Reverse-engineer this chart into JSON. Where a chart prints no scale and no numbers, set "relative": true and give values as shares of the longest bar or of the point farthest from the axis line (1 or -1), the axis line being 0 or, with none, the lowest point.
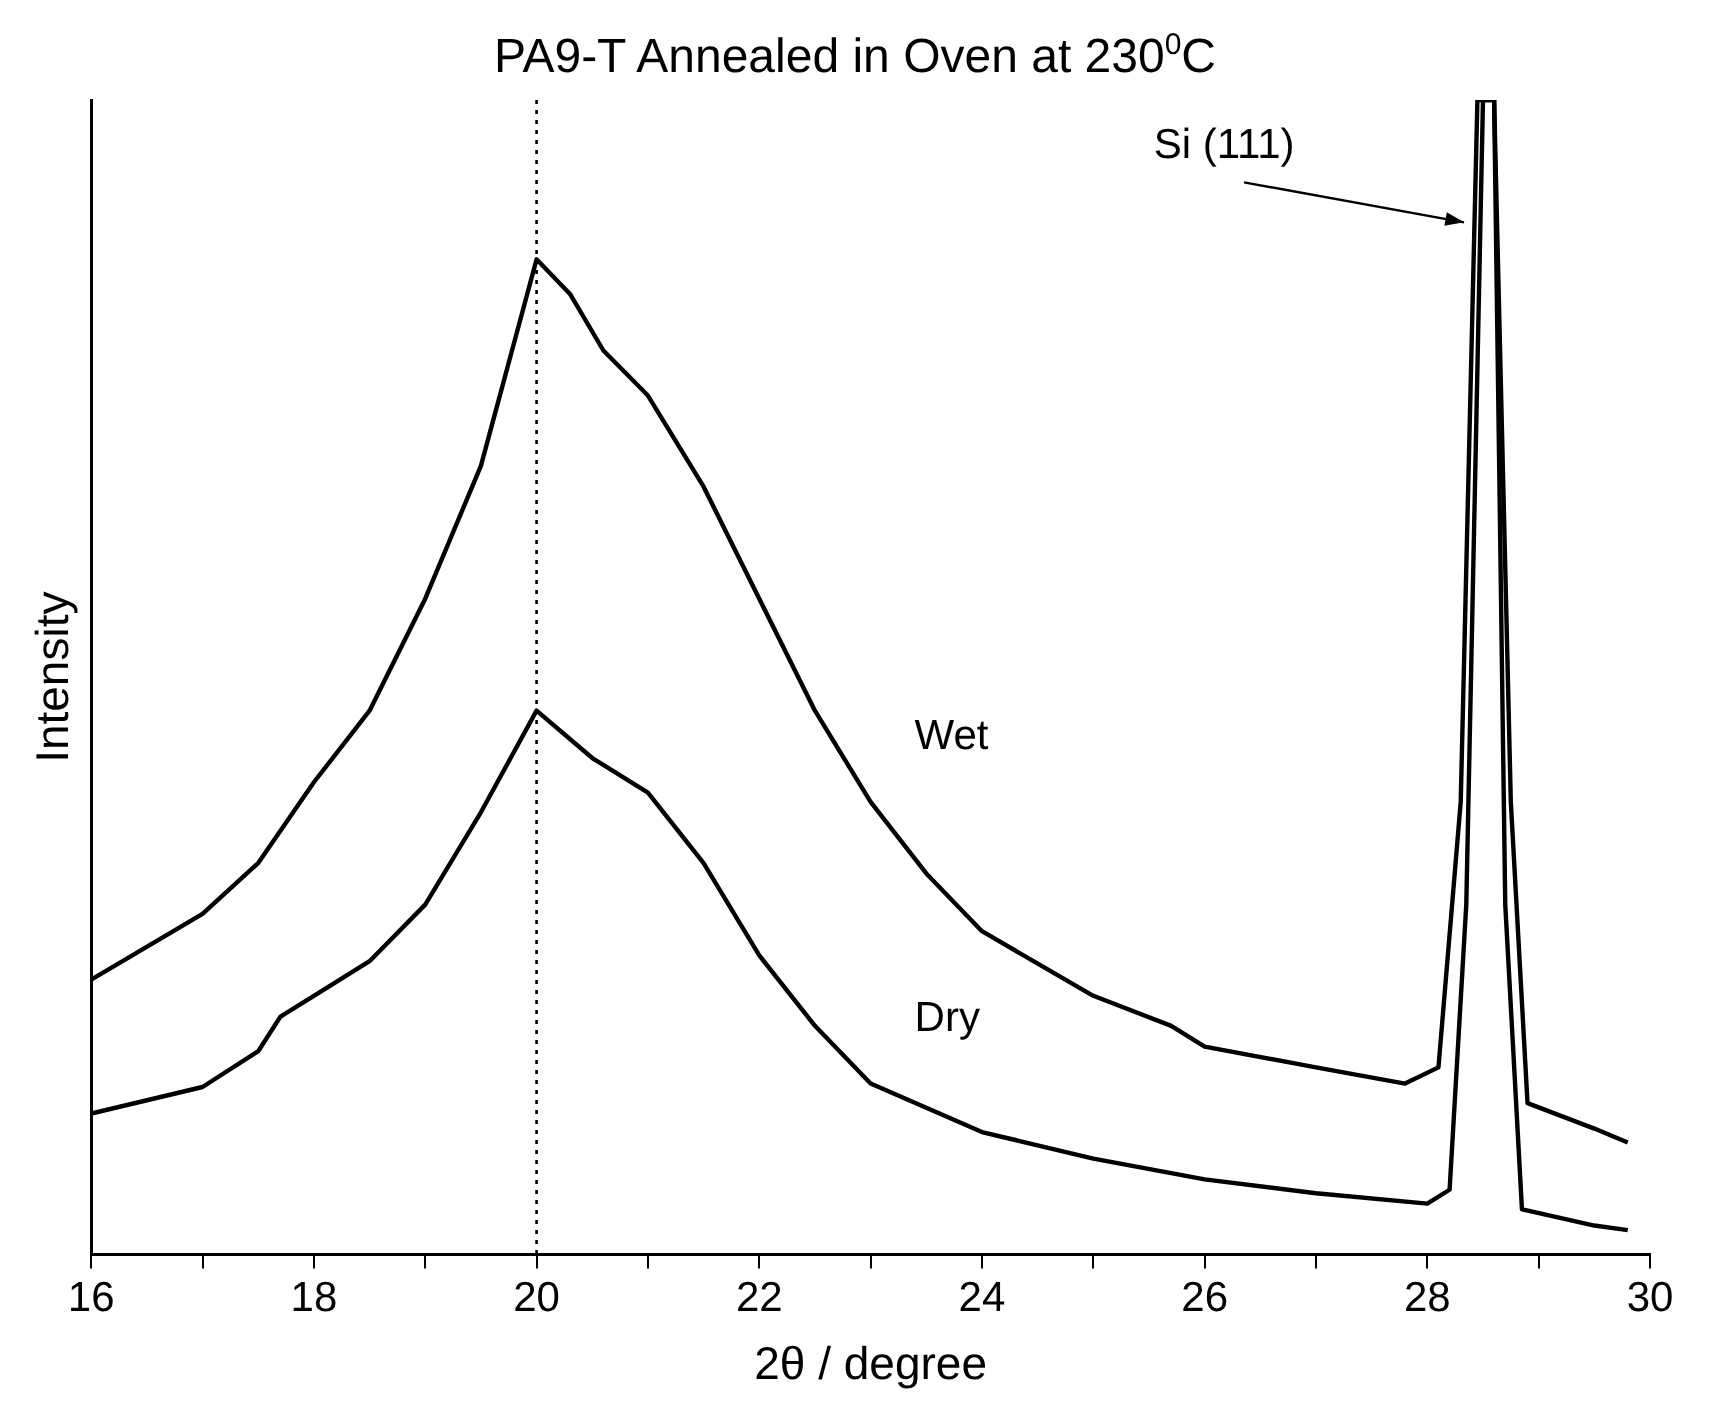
{
  "chart_data": {
    "type": "line",
    "title": "PA9-T Annealed in Oven at 230$^{0}$C",
    "xlabel": "2θ / degree",
    "ylabel": "Intensity",
    "relative": true,
    "xlim": [
      16,
      30
    ],
    "xticks": [
      16,
      {
        "value": 17,
        "label": null
      },
      18,
      {
        "value": 19,
        "label": null
      },
      20,
      {
        "value": 21,
        "label": null
      },
      22,
      {
        "value": 23,
        "label": null
      },
      24,
      {
        "value": 25,
        "label": null
      },
      26,
      {
        "value": 27,
        "label": null
      },
      28,
      {
        "value": 29,
        "label": null
      },
      30
    ],
    "series": [
      {
        "name": "Wet",
        "color": "#000000",
        "x": [
          16,
          17,
          17.5,
          18,
          18.5,
          19,
          19.5,
          20,
          20.3,
          20.6,
          21,
          21.5,
          22,
          22.5,
          23,
          23.5,
          24,
          25,
          25.7,
          26,
          27,
          27.8,
          28.1,
          28.3,
          28.45,
          28.6,
          28.75,
          28.9,
          29.5,
          29.8
        ],
        "values": [
          0.238,
          0.295,
          0.339,
          0.409,
          0.471,
          0.568,
          0.683,
          0.862,
          0.832,
          0.783,
          0.744,
          0.665,
          0.568,
          0.471,
          0.392,
          0.33,
          0.28,
          0.224,
          0.198,
          0.18,
          0.162,
          0.148,
          0.162,
          0.392,
          1,
          1,
          0.392,
          0.131,
          0.109,
          0.097
        ]
      },
      {
        "name": "Dry",
        "color": "#000000",
        "x": [
          16,
          17,
          17.5,
          17.7,
          18,
          18.5,
          19,
          19.5,
          20,
          20.5,
          21,
          21.5,
          22,
          22.5,
          23,
          24,
          25,
          26,
          27,
          28,
          28.2,
          28.35,
          28.5,
          28.6,
          28.7,
          28.85,
          29.5,
          29.8
        ],
        "values": [
          0.122,
          0.145,
          0.176,
          0.206,
          0.224,
          0.254,
          0.303,
          0.383,
          0.471,
          0.43,
          0.4,
          0.339,
          0.259,
          0.198,
          0.148,
          0.106,
          0.083,
          0.065,
          0.053,
          0.044,
          0.056,
          0.303,
          1,
          1,
          0.303,
          0.039,
          0.025,
          0.021
        ]
      }
    ],
    "ref_lines": [
      {
        "axis": "x",
        "value": 20,
        "line_style": "dotted",
        "color": "#000000"
      }
    ],
    "annotations": [
      {
        "text": "Si (111)",
        "x": 28.33,
        "y": 0.894
      }
    ],
    "line_style": "solid",
    "marker": "none",
    "legend": false
  }
}
